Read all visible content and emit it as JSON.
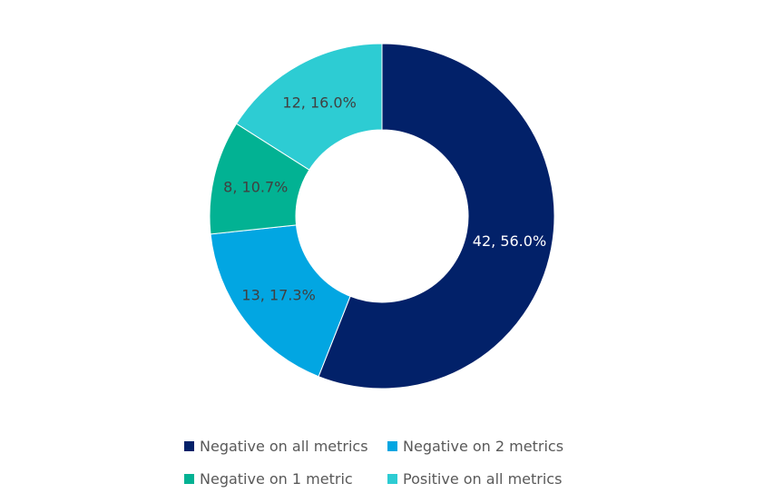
{
  "chart_data": {
    "type": "pie",
    "variant": "donut",
    "categories": [
      "Negative on all metrics",
      "Negative on 2 metrics",
      "Negative on 1 metric",
      "Positive on all metrics"
    ],
    "values": [
      42,
      13,
      8,
      12
    ],
    "percents": [
      56.0,
      17.3,
      10.7,
      16.0
    ],
    "data_labels": [
      "42, 56.0%",
      "13, 17.3%",
      "8, 10.7%",
      "12, 16.0%"
    ],
    "colors": [
      "#022169",
      "#02A6E2",
      "#02B293",
      "#2DCCD3"
    ],
    "label_colors": [
      "#ffffff",
      "#404040",
      "#404040",
      "#404040"
    ],
    "legend_position": "bottom"
  }
}
